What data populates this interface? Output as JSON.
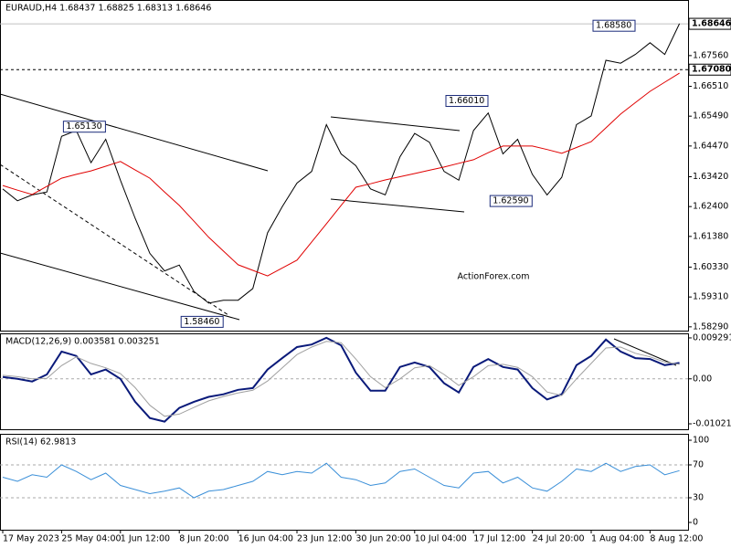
{
  "chart_data": [
    {
      "type": "line",
      "title": "EURAUD,H4  1.68437  1.68825  1.68313  1.68646",
      "watermark": "ActionForex.com",
      "series": [
        {
          "color": "#000000",
          "values": [
            1.63,
            1.626,
            1.628,
            1.629,
            1.648,
            1.65,
            1.639,
            1.647,
            1.633,
            1.62,
            1.608,
            1.602,
            1.604,
            1.595,
            1.591,
            1.592,
            1.592,
            1.596,
            1.615,
            1.624,
            1.632,
            1.636,
            1.652,
            1.642,
            1.638,
            1.63,
            1.628,
            1.641,
            1.649,
            1.646,
            1.636,
            1.633,
            1.65,
            1.656,
            1.642,
            1.647,
            1.635,
            1.628,
            1.634,
            1.652,
            1.655,
            1.674,
            1.673,
            1.676,
            1.68,
            1.676,
            1.6865
          ]
        },
        {
          "color": "#e00000",
          "values": [
            1.6312,
            1.6296,
            1.6281,
            1.6309,
            1.6337,
            1.635,
            1.6362,
            1.6378,
            1.6394,
            1.6365,
            1.6337,
            1.629,
            1.6244,
            1.619,
            1.6135,
            1.6088,
            1.6041,
            1.6022,
            1.6003,
            1.603,
            1.6057,
            1.6119,
            1.6181,
            1.6244,
            1.6306,
            1.6318,
            1.6331,
            1.6342,
            1.6353,
            1.6364,
            1.6375,
            1.6388,
            1.64,
            1.6424,
            1.6447,
            1.6447,
            1.6447,
            1.6435,
            1.6422,
            1.6442,
            1.6462,
            1.6509,
            1.6556,
            1.6595,
            1.6634,
            1.6665,
            1.6696
          ]
        }
      ],
      "ylim": [
        1.5816,
        1.6946
      ],
      "yticks": [
        {
          "value": 1.6756,
          "label": "1.67560"
        },
        {
          "value": 1.6651,
          "label": "1.66510"
        },
        {
          "value": 1.6549,
          "label": "1.65490"
        },
        {
          "value": 1.6447,
          "label": "1.64470"
        },
        {
          "value": 1.6342,
          "label": "1.63420"
        },
        {
          "value": 1.624,
          "label": "1.62400"
        },
        {
          "value": 1.6138,
          "label": "1.61380"
        },
        {
          "value": 1.6033,
          "label": "1.60330"
        },
        {
          "value": 1.5931,
          "label": "1.59310"
        },
        {
          "value": 1.5829,
          "label": "1.58290"
        }
      ],
      "markers": [
        {
          "value": 1.68646,
          "label": "1.68646",
          "line": "solid"
        },
        {
          "value": 1.6708,
          "label": "1.67080",
          "line": "dashed"
        }
      ],
      "annotations": [
        {
          "x": 4,
          "value": 1.6513,
          "label": "1.65130"
        },
        {
          "x": 12,
          "value": 1.5846,
          "label": "1.58460"
        },
        {
          "x": 30,
          "value": 1.6601,
          "label": "1.66010"
        },
        {
          "x": 33,
          "value": 1.6259,
          "label": "1.62590"
        },
        {
          "x": 40,
          "value": 1.6858,
          "label": "1.68580"
        }
      ]
    },
    {
      "type": "line",
      "title": "MACD(12,26,9) 0.003581 0.003251",
      "series": [
        {
          "color": "#0a1a7a",
          "values": [
            0.0004,
            0,
            -0.0006,
            0.001,
            0.0062,
            0.0052,
            0.001,
            0.0021,
            0,
            -0.0052,
            -0.0089,
            -0.0097,
            -0.0066,
            -0.0052,
            -0.0041,
            -0.0035,
            -0.0025,
            -0.0021,
            0.0021,
            0.0047,
            0.0072,
            0.0078,
            0.0093,
            0.0076,
            0.0014,
            -0.0027,
            -0.0027,
            0.0027,
            0.0037,
            0.0027,
            -0.001,
            -0.0031,
            0.0027,
            0.0045,
            0.0027,
            0.0021,
            -0.0021,
            -0.0047,
            -0.0035,
            0.0031,
            0.0052,
            0.0089,
            0.0062,
            0.0047,
            0.0045,
            0.0031,
            0.0036
          ]
        },
        {
          "color": "#a0a0a0",
          "values": [
            0.0008,
            0.0005,
            0,
            0.0001,
            0.003,
            0.005,
            0.0035,
            0.0025,
            0.0012,
            -0.002,
            -0.006,
            -0.0085,
            -0.008,
            -0.0065,
            -0.005,
            -0.004,
            -0.0032,
            -0.0026,
            -0.0005,
            0.0025,
            0.0055,
            0.0072,
            0.0085,
            0.0082,
            0.0045,
            0.0005,
            -0.002,
            0,
            0.0025,
            0.003,
            0.001,
            -0.0015,
            0.0005,
            0.003,
            0.0033,
            0.0026,
            0.0005,
            -0.003,
            -0.0038,
            0,
            0.0035,
            0.007,
            0.0072,
            0.0058,
            0.005,
            0.0038,
            0.0033
          ]
        }
      ],
      "ylim": [
        -0.01145,
        0.01032
      ],
      "yticks": [
        0.009291,
        {
          "value": 0,
          "label": "0.00"
        },
        -0.010211
      ]
    },
    {
      "type": "line",
      "title": "RSI(14) 62.9813",
      "series": [
        {
          "color": "#3a8fd8",
          "values": [
            55,
            50,
            58,
            55,
            70,
            62,
            52,
            60,
            45,
            40,
            35,
            38,
            42,
            30,
            38,
            40,
            45,
            50,
            62,
            58,
            62,
            60,
            72,
            55,
            52,
            45,
            48,
            62,
            65,
            55,
            45,
            42,
            60,
            62,
            48,
            55,
            42,
            38,
            50,
            65,
            62,
            72,
            62,
            68,
            70,
            58,
            63
          ]
        }
      ],
      "ylim": [
        -8.9,
        107.8
      ],
      "yticks": [
        100,
        70,
        30,
        0
      ],
      "levels": [
        70,
        30
      ],
      "categories": [
        "17 May 2023",
        null,
        null,
        null,
        "25 May 04:00",
        null,
        null,
        null,
        "1 Jun 12:00",
        null,
        null,
        null,
        "8 Jun 20:00",
        null,
        null,
        null,
        "16 Jun 04:00",
        null,
        null,
        null,
        "23 Jun 12:00",
        null,
        null,
        null,
        "30 Jun 20:00",
        null,
        null,
        null,
        "10 Jul 04:00",
        null,
        null,
        null,
        "17 Jul 12:00",
        null,
        null,
        null,
        "24 Jul 20:00",
        null,
        null,
        null,
        "1 Aug 04:00",
        null,
        null,
        null,
        "8 Aug 12:00",
        null,
        null
      ]
    }
  ]
}
